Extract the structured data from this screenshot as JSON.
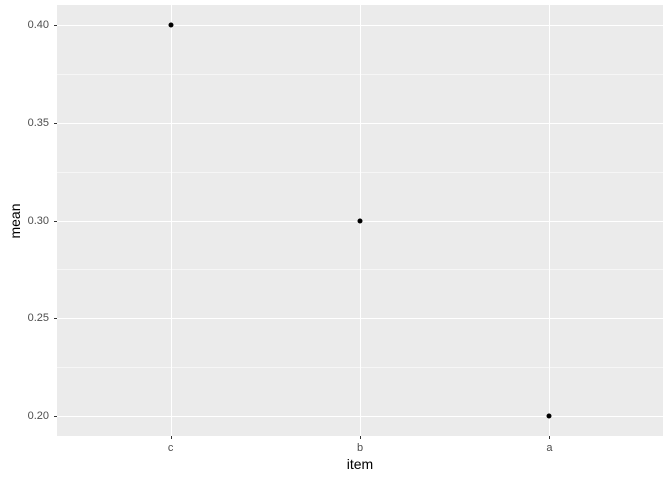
{
  "chart_data": {
    "type": "scatter",
    "style": "ggplot2-grey-theme",
    "title": "",
    "categories": [
      "c",
      "b",
      "a"
    ],
    "values": [
      0.4,
      0.3,
      0.2
    ],
    "series": [
      {
        "name": "mean",
        "values": [
          0.4,
          0.3,
          0.2
        ]
      }
    ],
    "xlabel": "item",
    "ylabel": "mean",
    "ylim": [
      0.19,
      0.41
    ],
    "y_major_ticks": [
      0.4,
      0.35,
      0.3,
      0.25,
      0.2
    ],
    "y_tick_labels": [
      "0.40",
      "0.35",
      "0.30",
      "0.25",
      "0.20"
    ],
    "y_minor_ticks": [
      0.375,
      0.325,
      0.275,
      0.225
    ],
    "grid": "major+minor horizontal, major vertical at categories",
    "legend": "none",
    "colors": {
      "outer_background": "#FFFFFF",
      "panel_background": "#EBEBEB",
      "gridline": "#FFFFFF",
      "point": "#000000",
      "tick_mark": "#333333",
      "tick_text": "#4D4D4D",
      "axis_title_text": "#000000"
    }
  }
}
